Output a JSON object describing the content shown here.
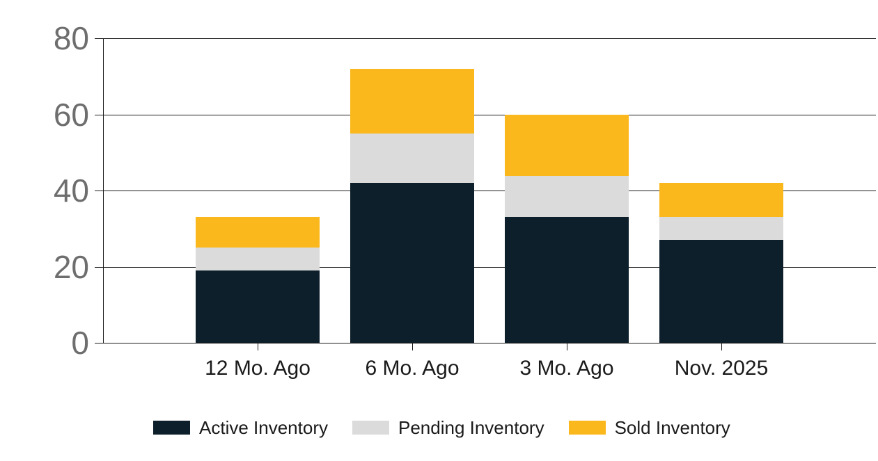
{
  "chart_data": {
    "type": "bar",
    "stacked": true,
    "title": "",
    "xlabel": "",
    "ylabel": "",
    "categories": [
      "12 Mo. Ago",
      "6 Mo. Ago",
      "3 Mo. Ago",
      "Nov. 2025"
    ],
    "series": [
      {
        "name": "Active Inventory",
        "color": "#0d1f2b",
        "values": [
          19,
          42,
          33,
          27
        ]
      },
      {
        "name": "Pending Inventory",
        "color": "#dbdbdb",
        "values": [
          6,
          13,
          11,
          6
        ]
      },
      {
        "name": "Sold Inventory",
        "color": "#fbb81c",
        "values": [
          8,
          17,
          16,
          9
        ]
      }
    ],
    "stack_totals": [
      33,
      72,
      60,
      42
    ],
    "yticks": [
      "0",
      "20",
      "40",
      "60",
      "80"
    ],
    "ylim": [
      0,
      80
    ],
    "grid": true,
    "legend_position": "bottom"
  },
  "colors": {
    "background": "#ffffff",
    "axis_line": "#1a1a1a",
    "y_tick_label": "#6e6e6e",
    "x_tick_label": "#1a1a1a",
    "legend_text": "#1a1a1a"
  }
}
